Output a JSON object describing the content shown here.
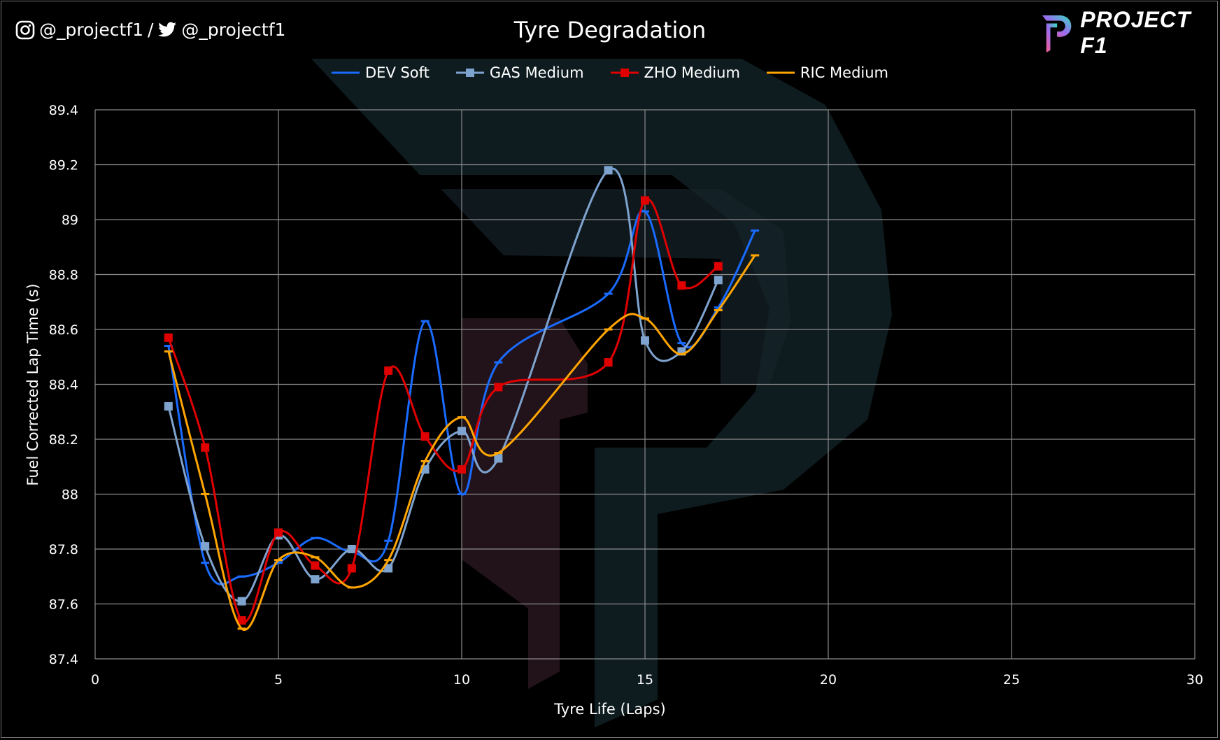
{
  "header": {
    "social_instagram": "@_projectf1",
    "separator": "/",
    "social_twitter": "@_projectf1",
    "logo_text": "PROJECT F1"
  },
  "chart_data": {
    "type": "line",
    "title": "Tyre Degradation",
    "xlabel": "Tyre Life (Laps)",
    "ylabel": "Fuel Corrected Lap Time (s)",
    "xlim": [
      0,
      30
    ],
    "ylim": [
      87.4,
      89.4
    ],
    "xticks": [
      "0",
      "5",
      "10",
      "15",
      "20",
      "25",
      "30"
    ],
    "yticks": [
      "87.4",
      "87.6",
      "87.8",
      "88",
      "88.2",
      "88.4",
      "88.6",
      "88.8",
      "89",
      "89.2",
      "89.4"
    ],
    "grid": true,
    "smooth": true,
    "legend_position": "top",
    "series": [
      {
        "name": "DEV Soft",
        "color": "#1a6bff",
        "marker": "dash",
        "x": [
          2,
          3,
          4,
          5,
          6,
          7,
          8,
          9,
          10,
          11,
          14,
          15,
          16,
          17,
          18
        ],
        "y": [
          88.54,
          87.75,
          87.7,
          87.75,
          87.84,
          87.79,
          87.83,
          88.63,
          88.0,
          88.48,
          88.73,
          89.03,
          88.55,
          88.68,
          88.96
        ]
      },
      {
        "name": "GAS Medium",
        "color": "#7ea3cf",
        "marker": "square",
        "x": [
          2,
          3,
          4,
          5,
          6,
          7,
          8,
          9,
          10,
          11,
          14,
          15,
          16,
          17
        ],
        "y": [
          88.32,
          87.81,
          87.61,
          87.85,
          87.69,
          87.8,
          87.73,
          88.09,
          88.23,
          88.13,
          89.18,
          88.56,
          88.52,
          88.78
        ]
      },
      {
        "name": "ZHO Medium",
        "color": "#e00000",
        "marker": "square",
        "x": [
          2,
          3,
          4,
          5,
          6,
          7,
          8,
          9,
          10,
          11,
          14,
          15,
          16,
          17
        ],
        "y": [
          88.57,
          88.17,
          87.54,
          87.86,
          87.74,
          87.73,
          88.45,
          88.21,
          88.09,
          88.39,
          88.48,
          89.07,
          88.76,
          88.83
        ]
      },
      {
        "name": "RIC Medium",
        "color": "#ffa500",
        "marker": "dash",
        "x": [
          2,
          3,
          4,
          5,
          6,
          7,
          8,
          9,
          10,
          11,
          14,
          15,
          16,
          17,
          18
        ],
        "y": [
          88.52,
          88.0,
          87.51,
          87.76,
          87.77,
          87.66,
          87.76,
          88.12,
          88.28,
          88.15,
          88.6,
          88.64,
          88.51,
          88.67,
          88.87
        ]
      }
    ]
  }
}
